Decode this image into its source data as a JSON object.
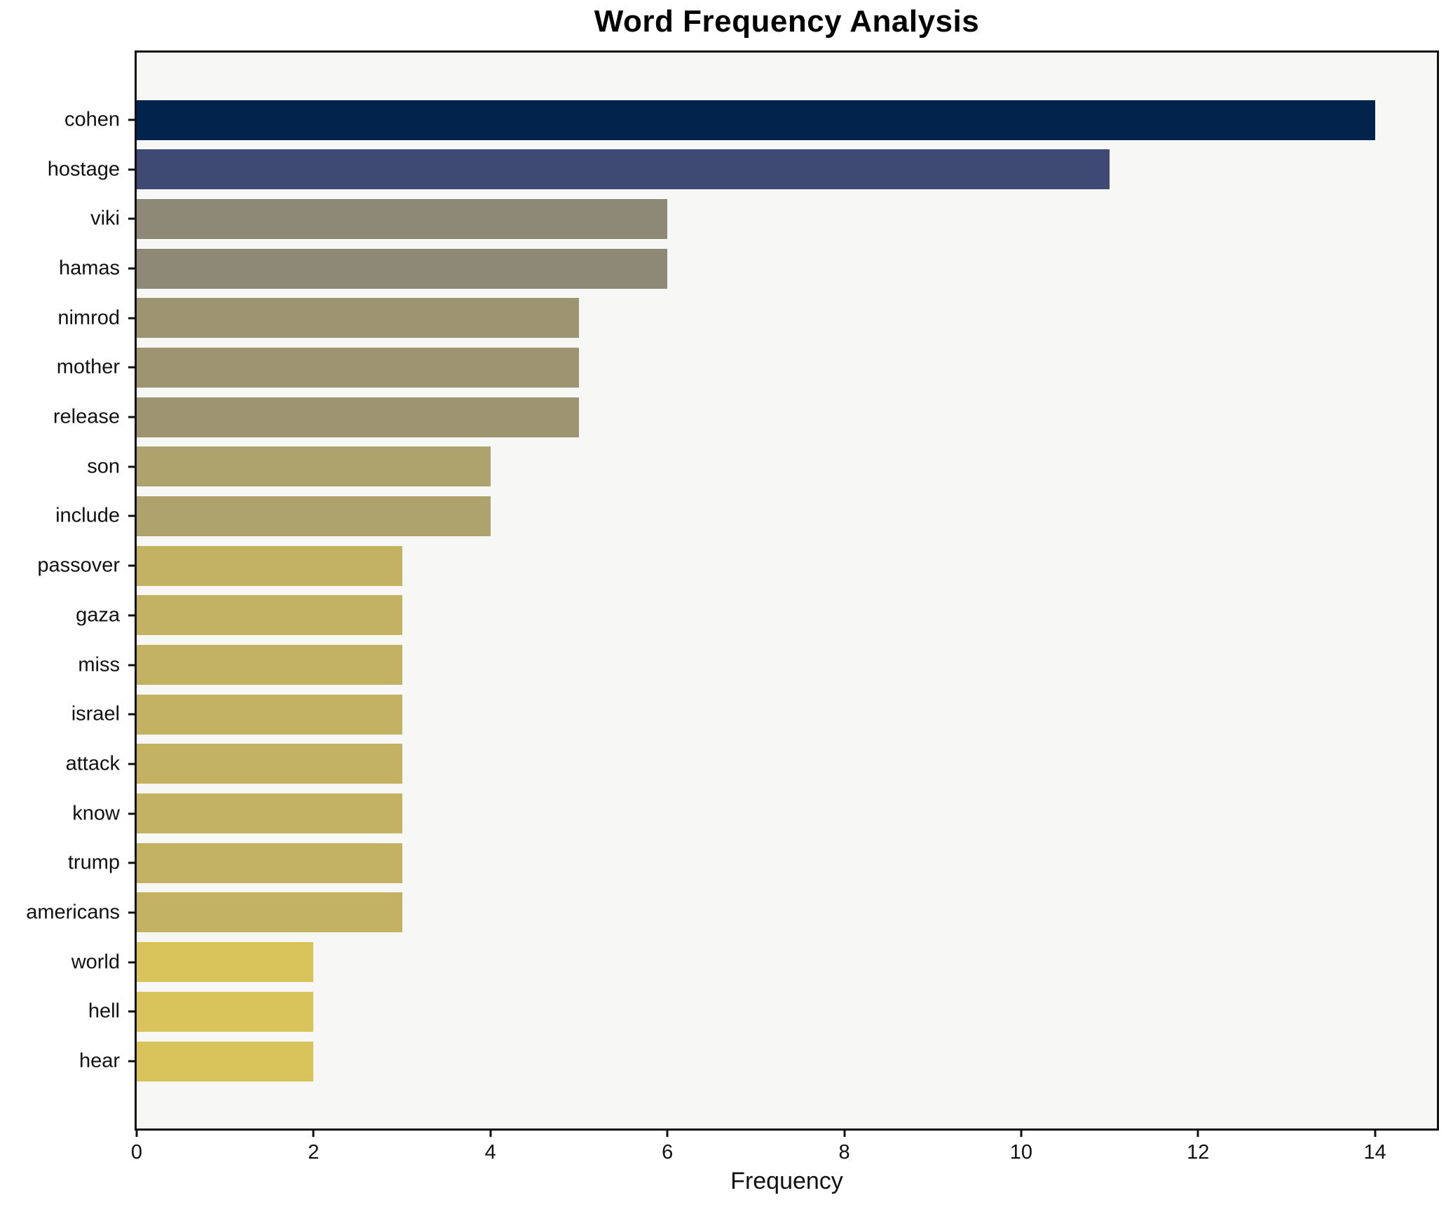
{
  "chart_data": {
    "type": "bar",
    "orientation": "horizontal",
    "title": "Word Frequency Analysis",
    "xlabel": "Frequency",
    "ylabel": "",
    "categories": [
      "cohen",
      "hostage",
      "viki",
      "hamas",
      "nimrod",
      "mother",
      "release",
      "son",
      "include",
      "passover",
      "gaza",
      "miss",
      "israel",
      "attack",
      "know",
      "trump",
      "americans",
      "world",
      "hell",
      "hear"
    ],
    "values": [
      14,
      11,
      6,
      6,
      5,
      5,
      5,
      4,
      4,
      3,
      3,
      3,
      3,
      3,
      3,
      3,
      3,
      2,
      2,
      2
    ],
    "bar_colors": [
      "#02234c",
      "#3e4a73",
      "#8e8877",
      "#8e8877",
      "#9d9471",
      "#9d9471",
      "#9d9471",
      "#aea36c",
      "#aea36c",
      "#c3b261",
      "#c3b261",
      "#c3b261",
      "#c3b261",
      "#c3b261",
      "#c3b261",
      "#c3b261",
      "#c3b261",
      "#d9c45c",
      "#d9c45c",
      "#d9c45c"
    ],
    "xlim": [
      0,
      14.7
    ],
    "x_ticks": [
      0,
      2,
      4,
      6,
      8,
      10,
      12,
      14
    ],
    "grid": "off",
    "legend": "none",
    "plot_background": "#f7f7f6",
    "spine_color": "#111111"
  }
}
